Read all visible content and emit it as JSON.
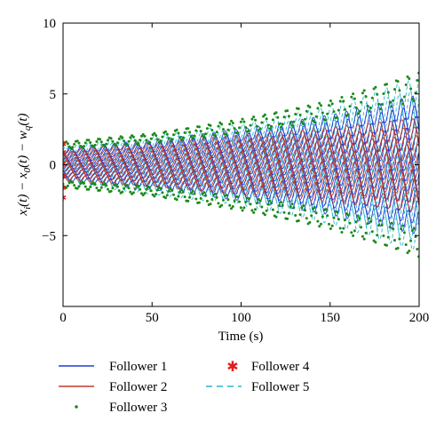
{
  "chart_data": {
    "type": "line",
    "xlabel": "Time (s)",
    "ylabel_parts": [
      "x",
      "i",
      "(t) − x",
      "0",
      "(t) − w",
      "q",
      "(t)"
    ],
    "xlim": [
      0,
      200
    ],
    "ylim": [
      -10,
      10
    ],
    "xticks": [
      "0",
      "50",
      "100",
      "150",
      "200"
    ],
    "yticks": [
      "−5",
      "0",
      "5",
      "10"
    ],
    "ytick_values": [
      -5,
      0,
      5,
      10
    ],
    "xtick_values": [
      0,
      50,
      100,
      150,
      200
    ],
    "grid": false,
    "legend_position": "below",
    "series": [
      {
        "name": "Follower 1",
        "style": "solid-line",
        "color": "#1f3fd6",
        "envelope": [
          [
            0,
            1.1
          ],
          [
            50,
            1.6
          ],
          [
            100,
            2.3
          ],
          [
            150,
            3.2
          ],
          [
            200,
            4.5
          ]
        ]
      },
      {
        "name": "Follower 2",
        "style": "solid-line",
        "color": "#c0392b",
        "envelope": [
          [
            0,
            1.0
          ],
          [
            50,
            1.4
          ],
          [
            100,
            1.9
          ],
          [
            150,
            2.4
          ],
          [
            200,
            3.0
          ]
        ]
      },
      {
        "name": "Follower 3",
        "style": "dots",
        "color": "#1a8a1a",
        "envelope": [
          [
            0,
            1.6
          ],
          [
            50,
            2.2
          ],
          [
            100,
            3.2
          ],
          [
            150,
            4.5
          ],
          [
            200,
            6.5
          ]
        ]
      },
      {
        "name": "Follower 4",
        "style": "asterisk-markers",
        "color": "#e02020",
        "envelope": [
          [
            0,
            2.3
          ]
        ]
      },
      {
        "name": "Follower 5",
        "style": "dashed-line",
        "color": "#26b8c9",
        "envelope": [
          [
            0,
            1.2
          ],
          [
            50,
            1.9
          ],
          [
            100,
            2.6
          ],
          [
            150,
            3.8
          ],
          [
            200,
            5.6
          ]
        ]
      }
    ]
  },
  "colors": {
    "follower1": "#1f3fd6",
    "follower2": "#c0392b",
    "follower3": "#1a8a1a",
    "follower4": "#e02020",
    "follower5": "#26b8c9"
  }
}
